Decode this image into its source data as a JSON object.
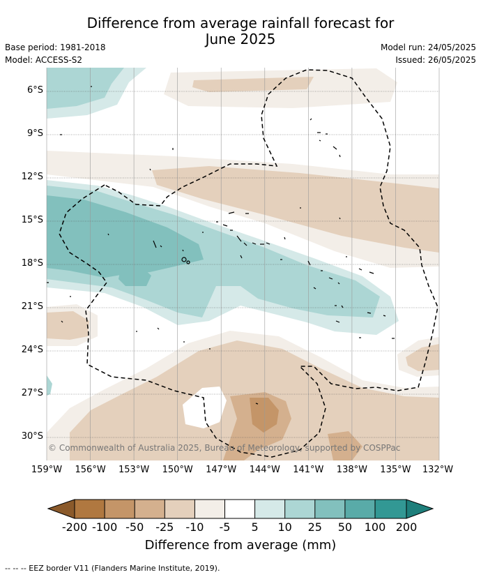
{
  "header": {
    "title_line1": "Difference from average rainfall forecast for",
    "title_line2": "June 2025",
    "base_period": "Base period: 1981-2018",
    "model": "Model: ACCESS-S2",
    "model_run": "Model run: 24/05/2025",
    "issued": "Issued: 26/05/2025"
  },
  "map": {
    "latitude_labels": [
      "6°S",
      "9°S",
      "12°S",
      "15°S",
      "18°S",
      "21°S",
      "24°S",
      "27°S",
      "30°S"
    ],
    "longitude_labels": [
      "159°W",
      "156°W",
      "153°W",
      "150°W",
      "147°W",
      "144°W",
      "141°W",
      "138°W",
      "135°W",
      "132°W"
    ],
    "copyright": "© Commonwealth of Australia 2025, Bureau of Meteorology, supported by COSPPac"
  },
  "colorbar": {
    "tick_labels": [
      "-200",
      "-100",
      "-50",
      "-25",
      "-10",
      "-5",
      "5",
      "10",
      "25",
      "50",
      "100",
      "200"
    ],
    "colors": [
      "#8b5a2b",
      "#b07840",
      "#c49568",
      "#d4b08e",
      "#e4d0bc",
      "#f3eee8",
      "#ffffff",
      "#d5e9e8",
      "#acd6d4",
      "#82c0bd",
      "#59aba8",
      "#329894",
      "#1e7f7b"
    ],
    "title": "Difference from average (mm)"
  },
  "legend": {
    "eez_note": "-- -- -- EEZ border V11 (Flanders Marine Institute, 2019)."
  }
}
